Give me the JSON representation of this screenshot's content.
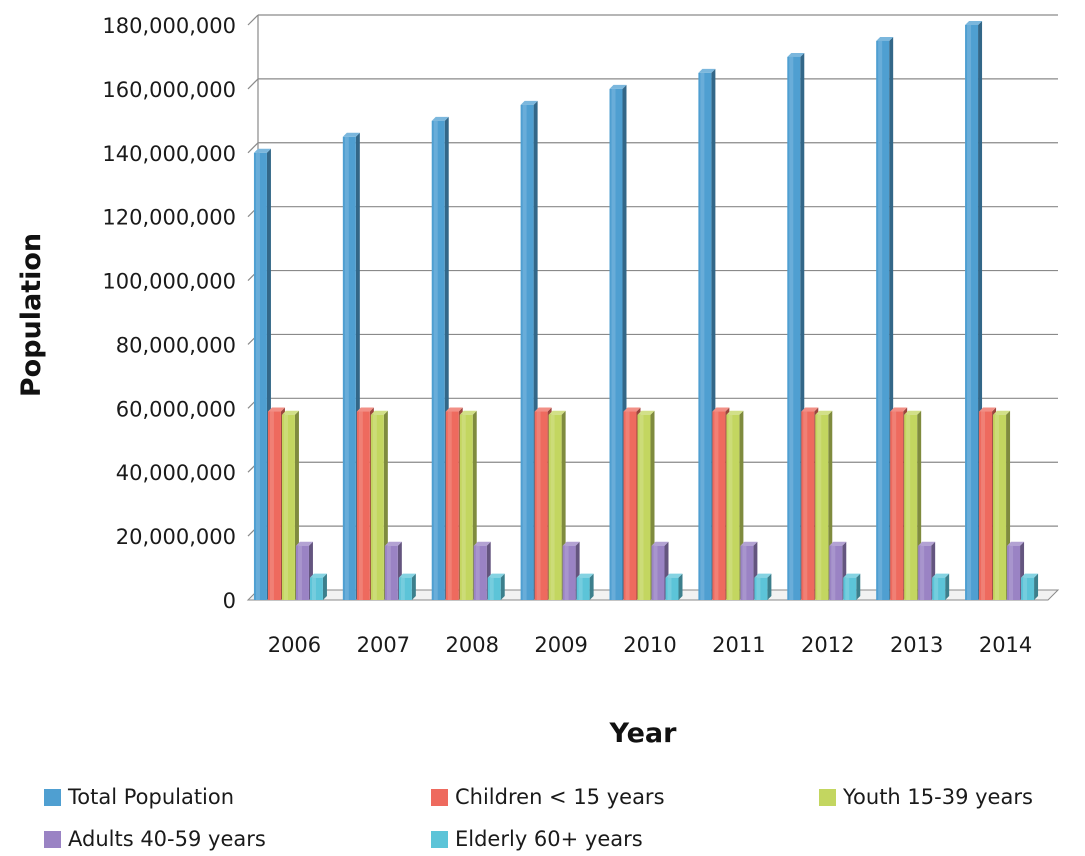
{
  "chart_data": {
    "type": "bar",
    "xlabel": "Year",
    "ylabel": "Population",
    "ylim": [
      0,
      180000000
    ],
    "yticks": [
      "0",
      "20,000,000",
      "40,000,000",
      "60,000,000",
      "80,000,000",
      "100,000,000",
      "120,000,000",
      "140,000,000",
      "160,000,000",
      "180,000,000"
    ],
    "ytick_values": [
      0,
      20000000,
      40000000,
      60000000,
      80000000,
      100000000,
      120000000,
      140000000,
      160000000,
      180000000
    ],
    "categories": [
      "2006",
      "2007",
      "2008",
      "2009",
      "2010",
      "2011",
      "2012",
      "2013",
      "2014"
    ],
    "grid": true,
    "legend_position": "bottom",
    "series": [
      {
        "name": "Total Population",
        "color": "#4f9fd1",
        "values": [
          140000000,
          145000000,
          150000000,
          155000000,
          160000000,
          165000000,
          170000000,
          175000000,
          180000000
        ]
      },
      {
        "name": "Children < 15 years",
        "color": "#ee6a5e",
        "values": [
          59000000,
          59000000,
          59000000,
          59000000,
          59000000,
          59000000,
          59000000,
          59000000,
          59000000
        ]
      },
      {
        "name": "Youth 15-39 years",
        "color": "#c3d660",
        "values": [
          58000000,
          58000000,
          58000000,
          58000000,
          58000000,
          58000000,
          58000000,
          58000000,
          58000000
        ]
      },
      {
        "name": "Adults 40-59 years",
        "color": "#9a83c4",
        "values": [
          17000000,
          17000000,
          17000000,
          17000000,
          17000000,
          17000000,
          17000000,
          17000000,
          17000000
        ]
      },
      {
        "name": "Elderly 60+ years",
        "color": "#5cc4d8",
        "values": [
          7000000,
          7000000,
          7000000,
          7000000,
          7000000,
          7000000,
          7000000,
          7000000,
          7000000
        ]
      }
    ]
  }
}
